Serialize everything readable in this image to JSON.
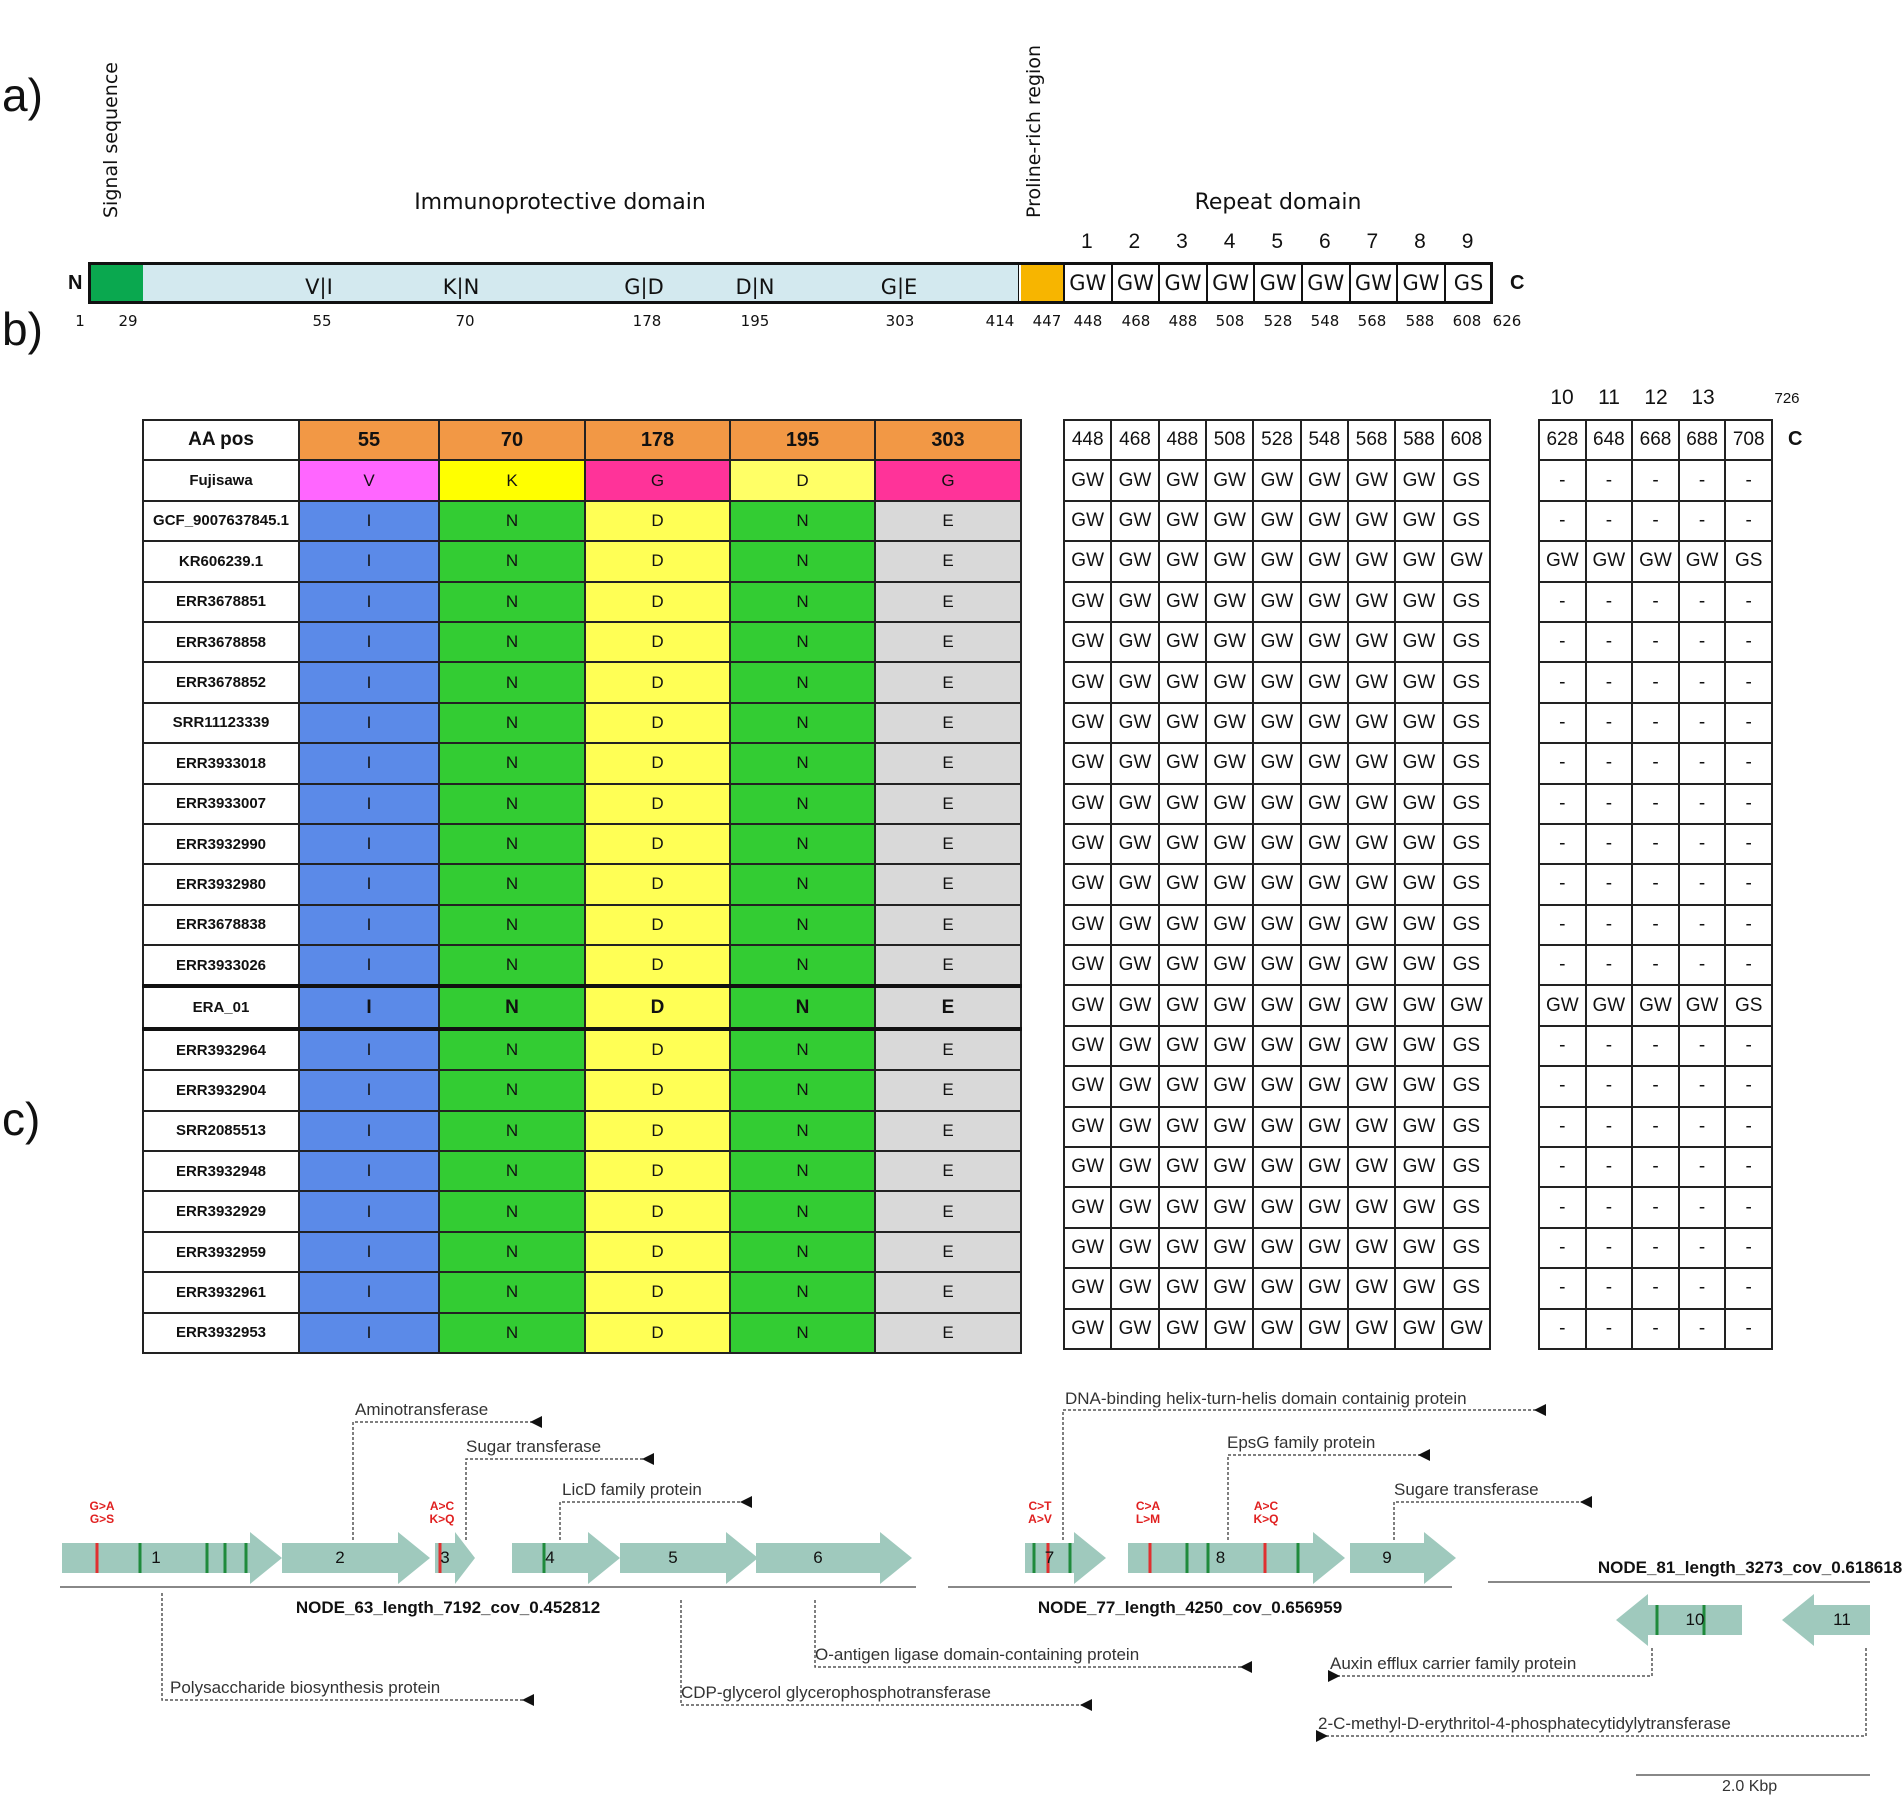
{
  "panel_labels": {
    "a": "a)",
    "b": "b)",
    "c": "c)"
  },
  "panel_a": {
    "signal_label": "Signal sequence",
    "proline_label": "Proline-rich region",
    "immuno_label": "Immunoprotective domain",
    "repeat_label": "Repeat domain",
    "n_label": "N",
    "c_label": "C",
    "substitutions": [
      "V|I",
      "K|N",
      "G|D",
      "D|N",
      "G|E"
    ],
    "positions": [
      "1",
      "29",
      "55",
      "70",
      "178",
      "195",
      "303",
      "414",
      "447",
      "448",
      "468",
      "488",
      "508",
      "528",
      "548",
      "568",
      "588",
      "608",
      "626"
    ],
    "repeat_numbers": [
      "1",
      "2",
      "3",
      "4",
      "5",
      "6",
      "7",
      "8",
      "9"
    ],
    "repeats": [
      "GW",
      "GW",
      "GW",
      "GW",
      "GW",
      "GW",
      "GW",
      "GW",
      "GS"
    ],
    "colors": {
      "signal": "#0aa84f",
      "immuno": "#d3e9ef",
      "proline": "#f7b500"
    }
  },
  "panel_b": {
    "header": [
      "AA pos",
      "55",
      "70",
      "178",
      "195",
      "303"
    ],
    "repeat_positions": [
      "448",
      "468",
      "488",
      "508",
      "528",
      "548",
      "568",
      "588",
      "608"
    ],
    "extra_numbers": [
      "10",
      "11",
      "12",
      "13"
    ],
    "extra_end": "726",
    "extra_positions": [
      "628",
      "648",
      "668",
      "688",
      "708"
    ],
    "c_label": "C",
    "colors": {
      "header": "#f29845",
      "V": "#ff66ff",
      "K": "#ffff00",
      "G": "#ff3399",
      "D": "#ffff66",
      "I": "#5b8ae8",
      "N": "#33cc33",
      "D2": "#ffff55",
      "E": "#d9d9d9"
    },
    "rows": [
      {
        "name": "Fujisawa",
        "aa": [
          "V",
          "K",
          "G",
          "D",
          "G"
        ],
        "rep": [
          "GW",
          "GW",
          "GW",
          "GW",
          "GW",
          "GW",
          "GW",
          "GW",
          "GS"
        ],
        "ext": [
          "-",
          "-",
          "-",
          "-",
          "-"
        ]
      },
      {
        "name": "GCF_9007637845.1",
        "aa": [
          "I",
          "N",
          "D",
          "N",
          "E"
        ],
        "rep": [
          "GW",
          "GW",
          "GW",
          "GW",
          "GW",
          "GW",
          "GW",
          "GW",
          "GS"
        ],
        "ext": [
          "-",
          "-",
          "-",
          "-",
          "-"
        ]
      },
      {
        "name": "KR606239.1",
        "aa": [
          "I",
          "N",
          "D",
          "N",
          "E"
        ],
        "rep": [
          "GW",
          "GW",
          "GW",
          "GW",
          "GW",
          "GW",
          "GW",
          "GW",
          "GW"
        ],
        "ext": [
          "GW",
          "GW",
          "GW",
          "GW",
          "GS"
        ]
      },
      {
        "name": "ERR3678851",
        "aa": [
          "I",
          "N",
          "D",
          "N",
          "E"
        ],
        "rep": [
          "GW",
          "GW",
          "GW",
          "GW",
          "GW",
          "GW",
          "GW",
          "GW",
          "GS"
        ],
        "ext": [
          "-",
          "-",
          "-",
          "-",
          "-"
        ]
      },
      {
        "name": "ERR3678858",
        "aa": [
          "I",
          "N",
          "D",
          "N",
          "E"
        ],
        "rep": [
          "GW",
          "GW",
          "GW",
          "GW",
          "GW",
          "GW",
          "GW",
          "GW",
          "GS"
        ],
        "ext": [
          "-",
          "-",
          "-",
          "-",
          "-"
        ]
      },
      {
        "name": "ERR3678852",
        "aa": [
          "I",
          "N",
          "D",
          "N",
          "E"
        ],
        "rep": [
          "GW",
          "GW",
          "GW",
          "GW",
          "GW",
          "GW",
          "GW",
          "GW",
          "GS"
        ],
        "ext": [
          "-",
          "-",
          "-",
          "-",
          "-"
        ]
      },
      {
        "name": "SRR11123339",
        "aa": [
          "I",
          "N",
          "D",
          "N",
          "E"
        ],
        "rep": [
          "GW",
          "GW",
          "GW",
          "GW",
          "GW",
          "GW",
          "GW",
          "GW",
          "GS"
        ],
        "ext": [
          "-",
          "-",
          "-",
          "-",
          "-"
        ]
      },
      {
        "name": "ERR3933018",
        "aa": [
          "I",
          "N",
          "D",
          "N",
          "E"
        ],
        "rep": [
          "GW",
          "GW",
          "GW",
          "GW",
          "GW",
          "GW",
          "GW",
          "GW",
          "GS"
        ],
        "ext": [
          "-",
          "-",
          "-",
          "-",
          "-"
        ]
      },
      {
        "name": "ERR3933007",
        "aa": [
          "I",
          "N",
          "D",
          "N",
          "E"
        ],
        "rep": [
          "GW",
          "GW",
          "GW",
          "GW",
          "GW",
          "GW",
          "GW",
          "GW",
          "GS"
        ],
        "ext": [
          "-",
          "-",
          "-",
          "-",
          "-"
        ]
      },
      {
        "name": "ERR3932990",
        "aa": [
          "I",
          "N",
          "D",
          "N",
          "E"
        ],
        "rep": [
          "GW",
          "GW",
          "GW",
          "GW",
          "GW",
          "GW",
          "GW",
          "GW",
          "GS"
        ],
        "ext": [
          "-",
          "-",
          "-",
          "-",
          "-"
        ]
      },
      {
        "name": "ERR3932980",
        "aa": [
          "I",
          "N",
          "D",
          "N",
          "E"
        ],
        "rep": [
          "GW",
          "GW",
          "GW",
          "GW",
          "GW",
          "GW",
          "GW",
          "GW",
          "GS"
        ],
        "ext": [
          "-",
          "-",
          "-",
          "-",
          "-"
        ]
      },
      {
        "name": "ERR3678838",
        "aa": [
          "I",
          "N",
          "D",
          "N",
          "E"
        ],
        "rep": [
          "GW",
          "GW",
          "GW",
          "GW",
          "GW",
          "GW",
          "GW",
          "GW",
          "GS"
        ],
        "ext": [
          "-",
          "-",
          "-",
          "-",
          "-"
        ]
      },
      {
        "name": "ERR3933026",
        "aa": [
          "I",
          "N",
          "D",
          "N",
          "E"
        ],
        "rep": [
          "GW",
          "GW",
          "GW",
          "GW",
          "GW",
          "GW",
          "GW",
          "GW",
          "GS"
        ],
        "ext": [
          "-",
          "-",
          "-",
          "-",
          "-"
        ]
      },
      {
        "name": "ERA_01",
        "aa": [
          "I",
          "N",
          "D",
          "N",
          "E"
        ],
        "rep": [
          "GW",
          "GW",
          "GW",
          "GW",
          "GW",
          "GW",
          "GW",
          "GW",
          "GW"
        ],
        "ext": [
          "GW",
          "GW",
          "GW",
          "GW",
          "GS"
        ],
        "bold": true
      },
      {
        "name": "ERR3932964",
        "aa": [
          "I",
          "N",
          "D",
          "N",
          "E"
        ],
        "rep": [
          "GW",
          "GW",
          "GW",
          "GW",
          "GW",
          "GW",
          "GW",
          "GW",
          "GS"
        ],
        "ext": [
          "-",
          "-",
          "-",
          "-",
          "-"
        ]
      },
      {
        "name": "ERR3932904",
        "aa": [
          "I",
          "N",
          "D",
          "N",
          "E"
        ],
        "rep": [
          "GW",
          "GW",
          "GW",
          "GW",
          "GW",
          "GW",
          "GW",
          "GW",
          "GS"
        ],
        "ext": [
          "-",
          "-",
          "-",
          "-",
          "-"
        ]
      },
      {
        "name": "SRR2085513",
        "aa": [
          "I",
          "N",
          "D",
          "N",
          "E"
        ],
        "rep": [
          "GW",
          "GW",
          "GW",
          "GW",
          "GW",
          "GW",
          "GW",
          "GW",
          "GS"
        ],
        "ext": [
          "-",
          "-",
          "-",
          "-",
          "-"
        ]
      },
      {
        "name": "ERR3932948",
        "aa": [
          "I",
          "N",
          "D",
          "N",
          "E"
        ],
        "rep": [
          "GW",
          "GW",
          "GW",
          "GW",
          "GW",
          "GW",
          "GW",
          "GW",
          "GS"
        ],
        "ext": [
          "-",
          "-",
          "-",
          "-",
          "-"
        ]
      },
      {
        "name": "ERR3932929",
        "aa": [
          "I",
          "N",
          "D",
          "N",
          "E"
        ],
        "rep": [
          "GW",
          "GW",
          "GW",
          "GW",
          "GW",
          "GW",
          "GW",
          "GW",
          "GS"
        ],
        "ext": [
          "-",
          "-",
          "-",
          "-",
          "-"
        ]
      },
      {
        "name": "ERR3932959",
        "aa": [
          "I",
          "N",
          "D",
          "N",
          "E"
        ],
        "rep": [
          "GW",
          "GW",
          "GW",
          "GW",
          "GW",
          "GW",
          "GW",
          "GW",
          "GS"
        ],
        "ext": [
          "-",
          "-",
          "-",
          "-",
          "-"
        ]
      },
      {
        "name": "ERR3932961",
        "aa": [
          "I",
          "N",
          "D",
          "N",
          "E"
        ],
        "rep": [
          "GW",
          "GW",
          "GW",
          "GW",
          "GW",
          "GW",
          "GW",
          "GW",
          "GS"
        ],
        "ext": [
          "-",
          "-",
          "-",
          "-",
          "-"
        ]
      },
      {
        "name": "ERR3932953",
        "aa": [
          "I",
          "N",
          "D",
          "N",
          "E"
        ],
        "rep": [
          "GW",
          "GW",
          "GW",
          "GW",
          "GW",
          "GW",
          "GW",
          "GW",
          "GW"
        ],
        "ext": [
          "-",
          "-",
          "-",
          "-",
          "-"
        ]
      }
    ]
  },
  "panel_c": {
    "gene_color": "#9fc9bd",
    "contigs": [
      "NODE_63_length_7192_cov_0.452812",
      "NODE_77_length_4250_cov_0.656959",
      "NODE_81_length_3273_cov_0.618618"
    ],
    "gene_numbers": [
      "1",
      "2",
      "3",
      "4",
      "5",
      "6",
      "7",
      "8",
      "9",
      "10",
      "11"
    ],
    "mutations": [
      "G>A\nG>S",
      "A>C\nK>Q",
      "C>T\nA>V",
      "C>A\nL>M",
      "A>C\nK>Q"
    ],
    "annotations": {
      "aminotransferase": "Aminotransferase",
      "sugar": "Sugar transferase",
      "licd": "LicD family protein",
      "dna_binding": "DNA-binding helix-turn-helis domain containig protein",
      "epsg": "EpsG family protein",
      "sugare": "Sugare transferase",
      "polysaccharide": "Polysaccharide biosynthesis protein",
      "cdp": "CDP-glycerol glycerophosphotransferase",
      "o_antigen": "O-antigen ligase domain-containing protein",
      "auxin": "Auxin efflux carrier family protein",
      "methyl": "2-C-methyl-D-erythritol-4-phosphatecytidylytransferase"
    },
    "scale_label": "2.0 Kbp"
  }
}
